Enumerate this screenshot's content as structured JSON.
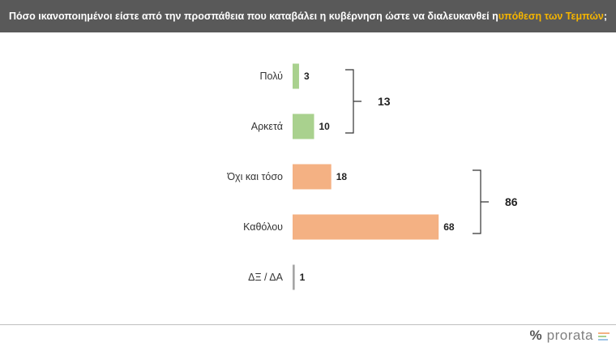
{
  "header": {
    "title_prefix": "Πόσο ικανοποιημένοι είστε από την προσπάθεια που καταβάλει η κυβέρνηση ώστε να διαλευκανθεί η ",
    "title_highlight": "υπόθεση των Τεμπών",
    "title_suffix": ";"
  },
  "chart_data": {
    "type": "bar",
    "orientation": "horizontal",
    "categories": [
      "Πολύ",
      "Αρκετά",
      "Όχι και τόσο",
      "Καθόλου",
      "ΔΞ / ΔΑ"
    ],
    "values": [
      3,
      10,
      18,
      68,
      1
    ],
    "colors": [
      "#a9d18e",
      "#a9d18e",
      "#f4b183",
      "#f4b183",
      "#a6a6a6"
    ],
    "groups": [
      {
        "categories": [
          "Πολύ",
          "Αρκετά"
        ],
        "total": 13
      },
      {
        "categories": [
          "Όχι και τόσο",
          "Καθόλου"
        ],
        "total": 86
      }
    ],
    "title": "Πόσο ικανοποιημένοι είστε από την προσπάθεια που καταβάλει η κυβέρνηση ώστε να διαλευκανθεί η υπόθεση των Τεμπών;",
    "grid": false,
    "legend": "none"
  },
  "footer": {
    "logo_symbol": "%",
    "logo_text": "prorata",
    "logo_bar_colors": [
      "#f4b183",
      "#a9d18e",
      "#9dc3e6"
    ]
  }
}
